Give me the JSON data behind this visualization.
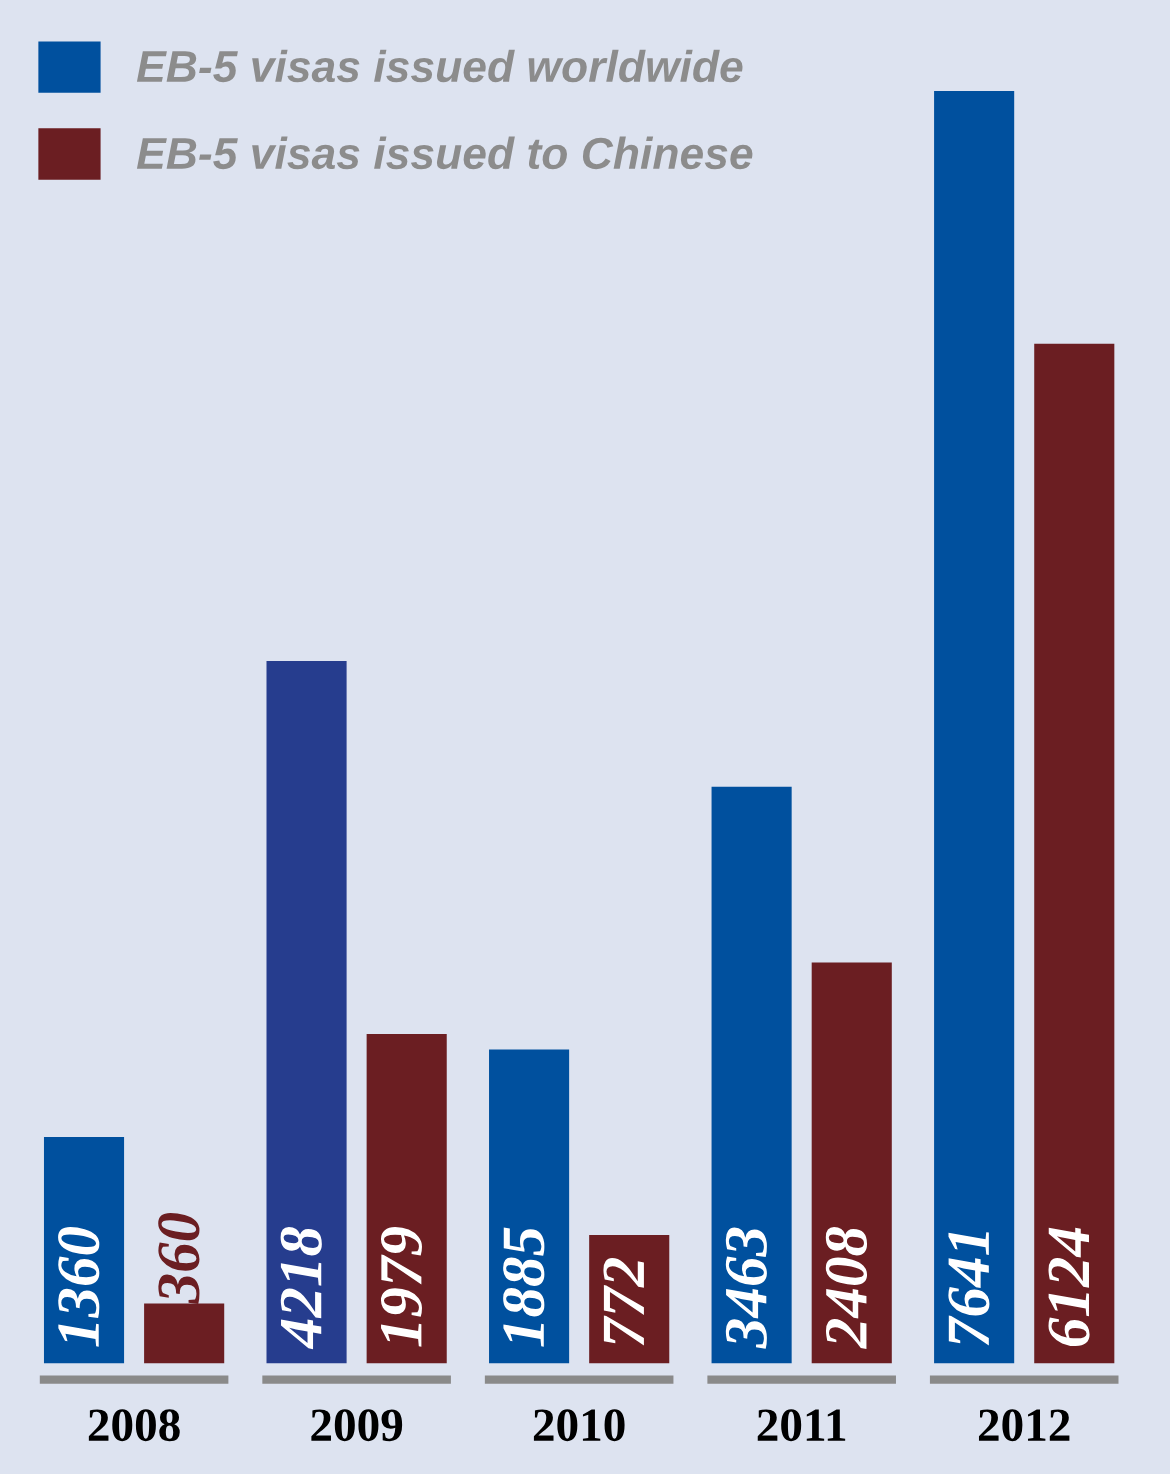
{
  "chart_data": {
    "type": "bar",
    "categories": [
      "2008",
      "2009",
      "2010",
      "2011",
      "2012"
    ],
    "series": [
      {
        "name": "EB-5 visas issued worldwide",
        "color": "#00509e",
        "colors": [
          "#00509e",
          "#263d8e",
          "#00509e",
          "#00509e",
          "#00509e"
        ],
        "values": [
          1360,
          4218,
          1885,
          3463,
          7641
        ]
      },
      {
        "name": "EB-5 visas issued to Chinese",
        "color": "#6b1e22",
        "values": [
          360,
          1979,
          772,
          2408,
          6124
        ]
      }
    ],
    "data_labels": true,
    "legend": "top left",
    "grid": false
  }
}
